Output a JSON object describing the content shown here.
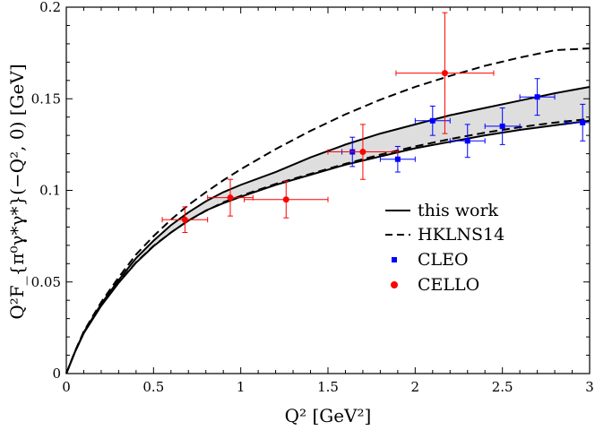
{
  "chart_data": {
    "type": "line",
    "xlabel": "Q² [GeV²]",
    "ylabel": "Q²F_{π⁰γ*γ*}(−Q², 0) [GeV]",
    "xlim": [
      0,
      3
    ],
    "ylim": [
      0,
      0.2
    ],
    "x_ticks": [
      0,
      0.5,
      1,
      1.5,
      2,
      2.5,
      3
    ],
    "x_tick_labels": [
      "0",
      "0.5",
      "1",
      "1.5",
      "2",
      "2.5",
      "3"
    ],
    "y_ticks": [
      0,
      0.05,
      0.1,
      0.15,
      0.2
    ],
    "y_tick_labels": [
      "0",
      "0.05",
      "0.1",
      "0.15",
      "0.2"
    ],
    "legend_position": "center-right",
    "colors": {
      "cleo": "#0000ff",
      "cello": "#ff0000",
      "band": "#dedede",
      "line": "#000000"
    },
    "series": [
      {
        "name": "this work",
        "style": "solid-band",
        "x": [
          0,
          0.05,
          0.1,
          0.2,
          0.3,
          0.4,
          0.5,
          0.6,
          0.7,
          0.8,
          0.9,
          1.0,
          1.2,
          1.4,
          1.6,
          1.8,
          2.0,
          2.2,
          2.4,
          2.6,
          2.8,
          3.0
        ],
        "upper": [
          0,
          0.012,
          0.0225,
          0.038,
          0.051,
          0.063,
          0.0725,
          0.081,
          0.088,
          0.094,
          0.099,
          0.103,
          0.11,
          0.118,
          0.125,
          0.131,
          0.136,
          0.141,
          0.145,
          0.149,
          0.153,
          0.1565
        ],
        "lower": [
          0,
          0.0118,
          0.022,
          0.037,
          0.0495,
          0.0605,
          0.0695,
          0.077,
          0.0835,
          0.089,
          0.093,
          0.0965,
          0.103,
          0.1085,
          0.114,
          0.1185,
          0.123,
          0.1265,
          0.13,
          0.133,
          0.1355,
          0.138
        ]
      },
      {
        "name": "HKLNS14",
        "style": "dashed",
        "x": [
          0,
          0.05,
          0.1,
          0.2,
          0.3,
          0.4,
          0.5,
          0.6,
          0.7,
          0.8,
          0.9,
          1.0,
          1.2,
          1.4,
          1.6,
          1.8,
          2.0,
          2.2,
          2.4,
          2.6,
          2.8,
          3.0
        ],
        "upper": [
          0,
          0.0122,
          0.023,
          0.039,
          0.0525,
          0.065,
          0.075,
          0.084,
          0.092,
          0.099,
          0.1055,
          0.1115,
          0.1225,
          0.1325,
          0.1415,
          0.1495,
          0.1565,
          0.1625,
          0.168,
          0.1725,
          0.1765,
          0.1775
        ],
        "lower": [
          0,
          0.0119,
          0.0222,
          0.0372,
          0.0498,
          0.0607,
          0.0697,
          0.077,
          0.0835,
          0.0888,
          0.0935,
          0.097,
          0.1035,
          0.109,
          0.1145,
          0.1195,
          0.124,
          0.128,
          0.1315,
          0.1345,
          0.137,
          0.139
        ]
      }
    ],
    "points": [
      {
        "name": "CLEO",
        "marker": "square",
        "data": [
          {
            "x": 1.64,
            "y": 0.121,
            "xerr": 0.06,
            "yerr": 0.008
          },
          {
            "x": 1.9,
            "y": 0.117,
            "xerr": 0.1,
            "yerr": 0.007
          },
          {
            "x": 2.1,
            "y": 0.138,
            "xerr": 0.1,
            "yerr": 0.008
          },
          {
            "x": 2.3,
            "y": 0.127,
            "xerr": 0.1,
            "yerr": 0.009
          },
          {
            "x": 2.5,
            "y": 0.135,
            "xerr": 0.1,
            "yerr": 0.01
          },
          {
            "x": 2.7,
            "y": 0.151,
            "xerr": 0.1,
            "yerr": 0.01
          },
          {
            "x": 2.96,
            "y": 0.137,
            "xerr": 0.1,
            "yerr": 0.01
          }
        ]
      },
      {
        "name": "CELLO",
        "marker": "circle",
        "data": [
          {
            "x": 0.68,
            "y": 0.084,
            "xerr": 0.13,
            "yerr": 0.007
          },
          {
            "x": 0.94,
            "y": 0.096,
            "xerr": 0.13,
            "yerr": 0.01
          },
          {
            "x": 1.26,
            "y": 0.095,
            "xerr": 0.24,
            "yerr": 0.01
          },
          {
            "x": 1.7,
            "y": 0.121,
            "xerr": 0.2,
            "yerr": 0.015
          },
          {
            "x": 2.17,
            "y": 0.164,
            "xerr": 0.28,
            "yerr": 0.033
          }
        ]
      }
    ]
  },
  "legend": [
    {
      "label": "this work",
      "style": "solid"
    },
    {
      "label": "HKLNS14",
      "style": "dashed"
    },
    {
      "label": "CLEO",
      "style": "square"
    },
    {
      "label": "CELLO",
      "style": "circle"
    }
  ]
}
